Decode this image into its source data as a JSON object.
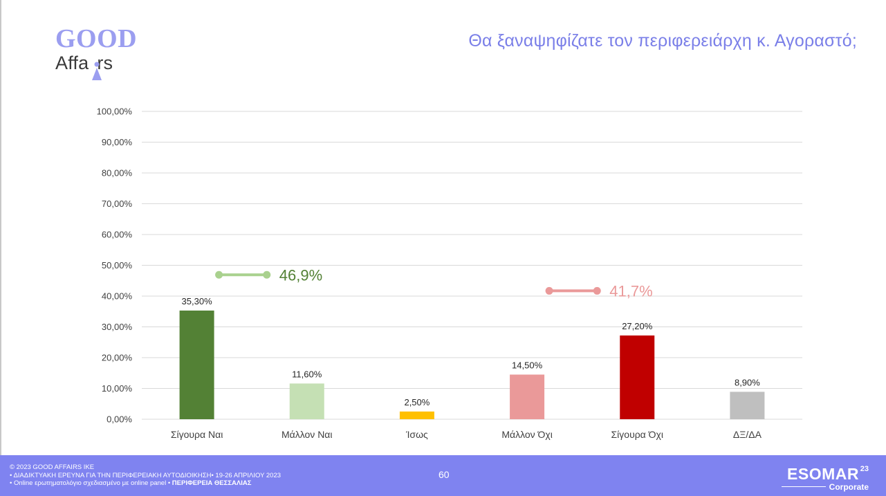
{
  "logo": {
    "good": "GOOD",
    "affairs_pre": "Affa",
    "affairs_post": "rs",
    "accent": "#9b9ef0"
  },
  "title": "Θα ξαναψηφίζατε τον περιφερειάρχη κ. Αγοραστό;",
  "chart_data": {
    "type": "bar",
    "categories": [
      "Σίγουρα Ναι",
      "Μάλλον Ναι",
      "Ίσως",
      "Μάλλον Όχι",
      "Σίγουρα Όχι",
      "ΔΞ/ΔΑ"
    ],
    "values": [
      35.3,
      11.6,
      2.5,
      14.5,
      27.2,
      8.9
    ],
    "value_labels": [
      "35,30%",
      "11,60%",
      "2,50%",
      "14,50%",
      "27,20%",
      "8,90%"
    ],
    "colors": [
      "#538135",
      "#c5e0b4",
      "#ffc000",
      "#ea9999",
      "#c00000",
      "#bfbfbf"
    ],
    "ylim": [
      0,
      100
    ],
    "yticks": [
      0,
      10,
      20,
      30,
      40,
      50,
      60,
      70,
      80,
      90,
      100
    ],
    "ytick_labels": [
      "0,00%",
      "10,00%",
      "20,00%",
      "30,00%",
      "40,00%",
      "50,00%",
      "60,00%",
      "70,00%",
      "80,00%",
      "90,00%",
      "100,00%"
    ],
    "grid": true,
    "annotations": [
      {
        "text": "46,9%",
        "value": 46.9,
        "color": "#a9d18e",
        "text_color": "#538135",
        "spans": [
          0,
          1
        ]
      },
      {
        "text": "41,7%",
        "value": 41.7,
        "color": "#ea9999",
        "text_color": "#ea9999",
        "spans": [
          3,
          4
        ]
      }
    ]
  },
  "footer": {
    "line1": "© 2023 GOOD AFFAIRS IKE",
    "line2": "• ΔΙΑΔΙΚΤΥΑΚΗ ΕΡΕΥΝΑ  ΓΙΑ ΤΗΝ ΠΕΡΙΦΕΡΕΙΑΚΗ ΑΥΤΟΔΙΟΙΚΗΣΗ• 19-26 ΑΠΡΙΛΙΟΥ 2023",
    "line3_normal": "• Online ερωτηματολόγιο σχεδιασμένο με online panel  • ",
    "line3_bold": "ΠΕΡΙΦΕΡΕΙΑ ΘΕΣΣΑΛΙΑΣ",
    "page_number": "60",
    "esomar": "ESOMAR",
    "esomar_year": "23",
    "esomar_sub": "Corporate",
    "background": "#7f83f0"
  }
}
